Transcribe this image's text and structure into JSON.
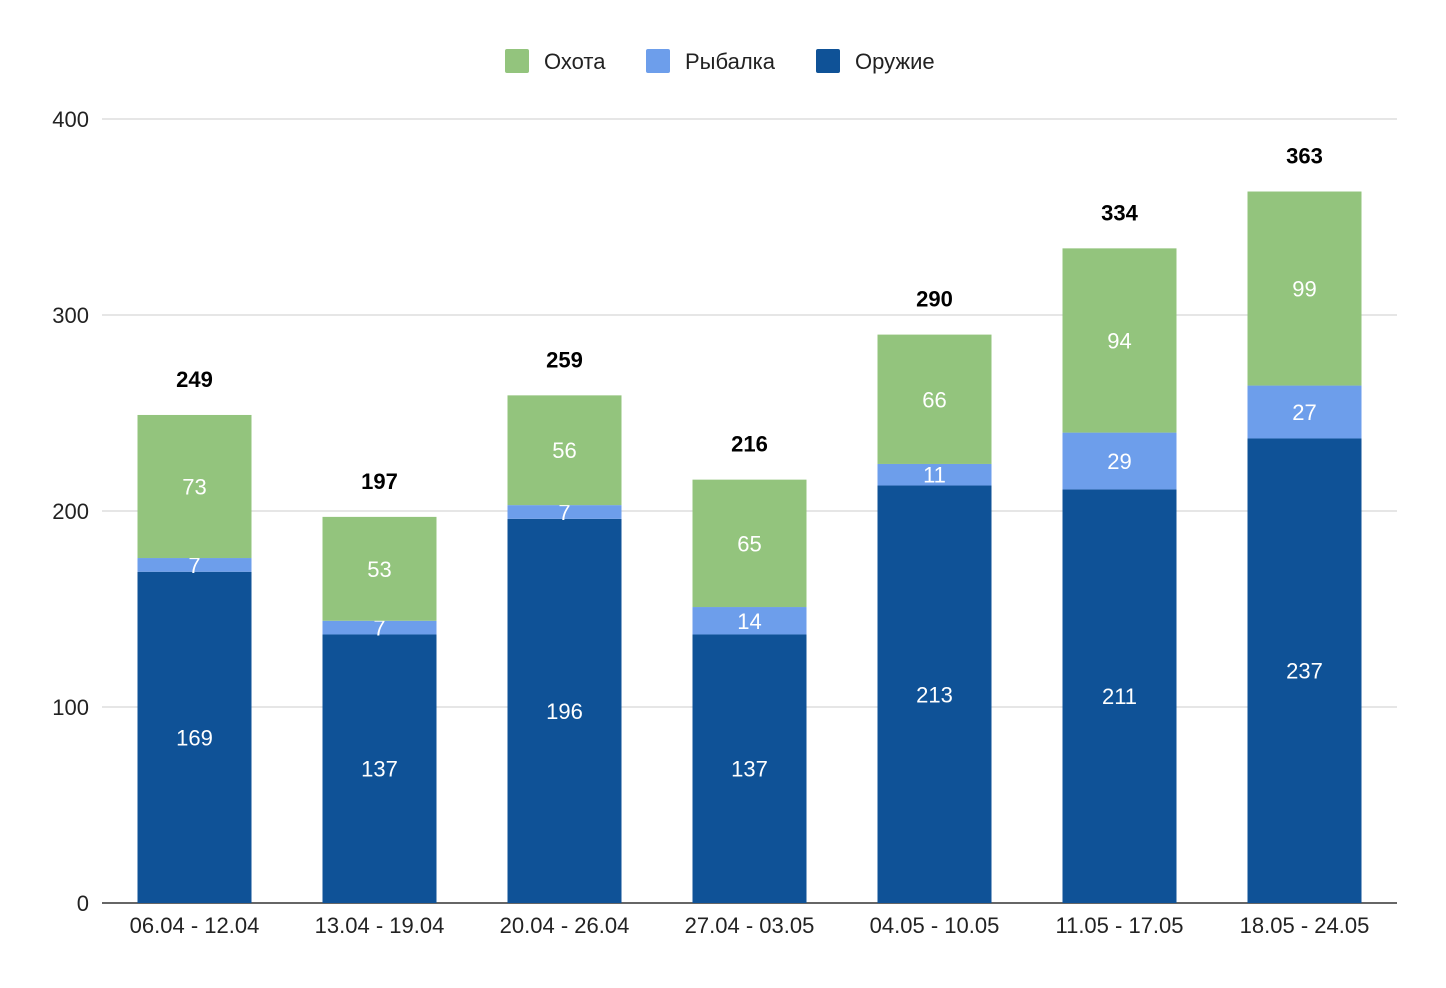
{
  "chart_data": {
    "type": "bar",
    "stacked": true,
    "title": "",
    "xlabel": "",
    "ylabel": "",
    "ylim": [
      0,
      400
    ],
    "yticks": [
      0,
      100,
      200,
      300,
      400
    ],
    "grid": true,
    "legend_position": "top-center",
    "categories": [
      "06.04 - 12.04",
      "13.04 - 19.04",
      "20.04 - 26.04",
      "27.04 - 03.05",
      "04.05 - 10.05",
      "11.05 - 17.05",
      "18.05 - 24.05"
    ],
    "series": [
      {
        "name": "Оружие",
        "color": "#0f5297",
        "values": [
          169,
          137,
          196,
          137,
          213,
          211,
          237
        ]
      },
      {
        "name": "Рыбалка",
        "color": "#6d9eeb",
        "values": [
          7,
          7,
          7,
          14,
          11,
          29,
          27
        ]
      },
      {
        "name": "Охота",
        "color": "#93c47d",
        "values": [
          73,
          53,
          56,
          65,
          66,
          94,
          99
        ]
      }
    ],
    "legend_order": [
      "Охота",
      "Рыбалка",
      "Оружие"
    ],
    "totals": [
      249,
      197,
      259,
      216,
      290,
      334,
      363
    ]
  }
}
